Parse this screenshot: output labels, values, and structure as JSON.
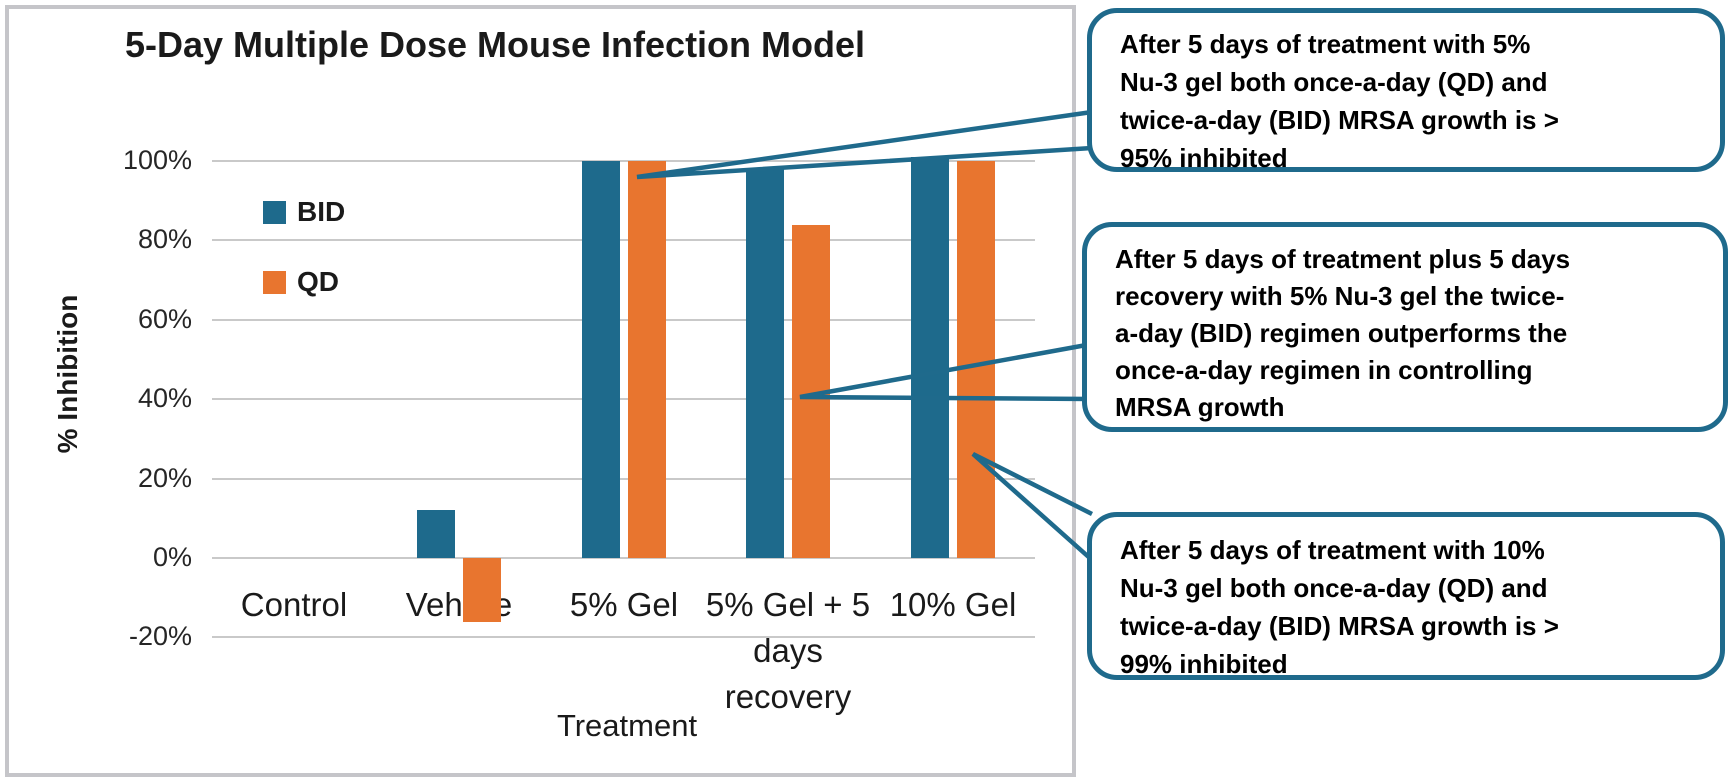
{
  "colors": {
    "bid_teal": "#1e6a8c",
    "qd_orange": "#e8752f",
    "gridline_gray": "#c9c9c9",
    "frame_border_gray": "#c5c5c9",
    "callout_border_teal": "#1f6a8c",
    "text_black": "#1a1a1a"
  },
  "chart_data": {
    "type": "bar",
    "title": "5-Day Multiple Dose Mouse Infection Model",
    "xlabel": "Treatment",
    "ylabel": "% Inhibition",
    "categories": [
      "Control",
      "Vehicle",
      "5% Gel",
      "5% Gel + 5\ndays\nrecovery",
      "10% Gel"
    ],
    "series": [
      {
        "name": "BID",
        "color": "#1e6a8c",
        "values": [
          0,
          12,
          100,
          98,
          101
        ]
      },
      {
        "name": "QD",
        "color": "#e8752f",
        "values": [
          0,
          -16,
          100,
          84,
          100
        ]
      }
    ],
    "y_ticks": [
      {
        "value": 100,
        "label": "100%"
      },
      {
        "value": 80,
        "label": "80%"
      },
      {
        "value": 60,
        "label": "60%"
      },
      {
        "value": 40,
        "label": "40%"
      },
      {
        "value": 20,
        "label": "20%"
      },
      {
        "value": 0,
        "label": "0%"
      },
      {
        "value": -20,
        "label": "-20%"
      }
    ],
    "ylim": [
      -20,
      101
    ],
    "grid": true,
    "legend_position": "inside-top-left"
  },
  "legend": {
    "items": [
      {
        "label": "BID"
      },
      {
        "label": "QD"
      }
    ]
  },
  "callouts": [
    {
      "text": "After 5 days of treatment with 5%\nNu-3 gel both once-a-day (QD) and\ntwice-a-day (BID) MRSA growth is >\n95% inhibited"
    },
    {
      "text": "After 5 days of treatment plus 5 days\nrecovery with 5% Nu-3 gel the twice-\na-day (BID) regimen outperforms the\nonce-a-day regimen in controlling\nMRSA growth"
    },
    {
      "text": "After 5 days of treatment with 10%\nNu-3 gel both once-a-day (QD) and\ntwice-a-day (BID) MRSA growth is >\n99% inhibited"
    }
  ]
}
